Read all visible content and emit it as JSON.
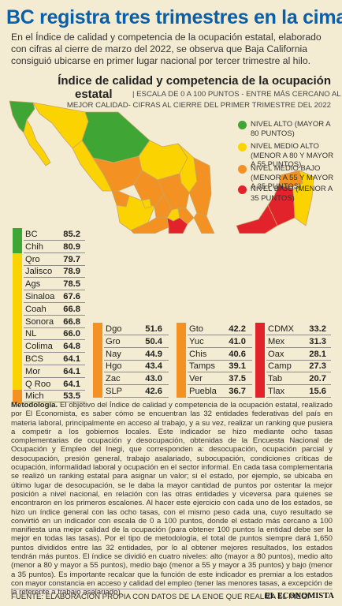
{
  "header": {
    "title": "BC registra tres trimestres en la cima",
    "lead": "En el Índice de calidad y competencia de la ocupación estatal, elaborado con cifras al cierre de marzo del 2022, se observa que Baja California consiguió ubicarse en primer lugar nacional por tercer trimestre al hilo."
  },
  "section": {
    "title_line1": "Índice de calidad y competencia de la ocupación",
    "title_line2": "estatal",
    "note_line1": "| ESCALA DE 0 A 100 PUNTOS - ENTRE MÁS CERCANO AL 100,",
    "note_line2": "MEJOR CALIDAD- CIFRAS AL CIERRE DEL PRIMER TRIMESTRE DEL 2022"
  },
  "legend": [
    {
      "label": "NIVEL ALTO (MAYOR A 80 PUNTOS)",
      "color": "#3fa535"
    },
    {
      "label": "NIVEL MEDIO ALTO (MENOR A 80 Y MAYOR A 55 PUNTOS)",
      "color": "#fbd300"
    },
    {
      "label": "NIVEL MEDIO BAJO (MENOR A 55 Y MAYOR A 35 PUNTOS)",
      "color": "#f39222"
    },
    {
      "label": "NIVEL BAJO (MENOR A 35 PUNTOS)",
      "color": "#e3232b"
    }
  ],
  "chart_data": {
    "type": "table",
    "title": "Índice de calidad y competencia de la ocupación estatal",
    "scale": [
      0,
      100
    ],
    "levels": [
      {
        "name": "NIVEL ALTO",
        "min": 80,
        "color": "#3fa535"
      },
      {
        "name": "NIVEL MEDIO ALTO",
        "min": 55,
        "max": 80,
        "color": "#fbd300"
      },
      {
        "name": "NIVEL MEDIO BAJO",
        "min": 35,
        "max": 55,
        "color": "#f39222"
      },
      {
        "name": "NIVEL BAJO",
        "max": 35,
        "color": "#e3232b"
      }
    ],
    "columns": [
      [
        {
          "state": "BC",
          "value": "85.2"
        },
        {
          "state": "Chih",
          "value": "80.9"
        },
        {
          "state": "Qro",
          "value": "79.7"
        },
        {
          "state": "Jalisco",
          "value": "78.9"
        },
        {
          "state": "Ags",
          "value": "78.5"
        },
        {
          "state": "Sinaloa",
          "value": "67.6"
        },
        {
          "state": "Coah",
          "value": "66.8"
        },
        {
          "state": "Sonora",
          "value": "66.8"
        },
        {
          "state": "NL",
          "value": "66.0"
        },
        {
          "state": "Colima",
          "value": "64.8"
        },
        {
          "state": "BCS",
          "value": "64.1"
        },
        {
          "state": "Mor",
          "value": "64.1"
        },
        {
          "state": "Q Roo",
          "value": "64.1"
        },
        {
          "state": "Mich",
          "value": "53.5"
        }
      ],
      [
        {
          "state": "Dgo",
          "value": "51.6"
        },
        {
          "state": "Gro",
          "value": "50.4"
        },
        {
          "state": "Nay",
          "value": "44.9"
        },
        {
          "state": "Hgo",
          "value": "43.4"
        },
        {
          "state": "Zac",
          "value": "43.0"
        },
        {
          "state": "SLP",
          "value": "42.6"
        }
      ],
      [
        {
          "state": "Gto",
          "value": "42.2"
        },
        {
          "state": "Yuc",
          "value": "41.0"
        },
        {
          "state": "Chis",
          "value": "40.6"
        },
        {
          "state": "Tamps",
          "value": "39.1"
        },
        {
          "state": "Ver",
          "value": "37.5"
        },
        {
          "state": "Puebla",
          "value": "36.7"
        }
      ],
      [
        {
          "state": "CDMX",
          "value": "33.2"
        },
        {
          "state": "Mex",
          "value": "31.3"
        },
        {
          "state": "Oax",
          "value": "28.1"
        },
        {
          "state": "Camp",
          "value": "27.3"
        },
        {
          "state": "Tab",
          "value": "20.7"
        },
        {
          "state": "Tlax",
          "value": "15.6"
        }
      ]
    ]
  },
  "methodology": {
    "label": "Metodología.",
    "text": " El objetivo del Índice de calidad y competencia de la ocupación estatal, realizado por El Economista, es saber cómo se encuentran las 32 entidades federativas del país en materia laboral, principalmente en acceso al trabajo, y a su vez, realizar un ranking que pusiera a competir a los gobiernos locales. Este indicador se hizo mediante ocho tasas complementarias de ocupación y desocupación, obtenidas de la Encuesta Nacional de Ocupación y Empleo del Inegi, que corresponden a: desocupación, ocupación parcial y desocupación, presión general, trabajo asalariado, subocupación, condiciones críticas de ocupación, informalidad laboral y ocupación en el sector informal. En cada tasa complementaria se realizó un ranking estatal para asignar un valor; si el estado, por ejemplo, se ubicaba en último lugar de desocupación, se le daba la mayor cantidad de puntos por ostentar la mejor posición a nivel nacional, en relación con las otras entidades y viceversa para quienes se encontraron en los primeros escalones. Al hacer este ejercicio con cada uno de los estados, se hizo un índice general con las ocho tasas, con el mismo peso cada una, cuyo resultado se convirtió en un indicador con escala de 0 a 100 puntos, donde el estado más cercano a 100 manifiesta una mejor calidad de la ocupación (para obtener 100 puntos la entidad debe ser la mejor en todas las tasas). Por el tipo de metodología, el total de puntos siempre dará 1,650 puntos divididos entre las 32 entidades, por lo al obtener mejores resultados, los estados tendrán más puntos. El índice se dividió en cuatro niveles: alto (mayor a 80 puntos), medio alto (menor a 80 y mayor a 55 puntos), medio bajo (menor a 55 y mayor a 35 puntos) y bajo (menor a 35 puntos). Es importante recalcar que la función de este indicador es premiar a los estados con mayor constancia en acceso y calidad del empleo (tener las menores tasas, a excepción de la referente a trabajo asalariado)."
  },
  "footer": {
    "source": "FUENTE: ELABORACIÓN PROPIA CON DATOS DE LA ENOE QUE REALIZA EL INEGI",
    "brand": "EL ECONOMISTA"
  }
}
